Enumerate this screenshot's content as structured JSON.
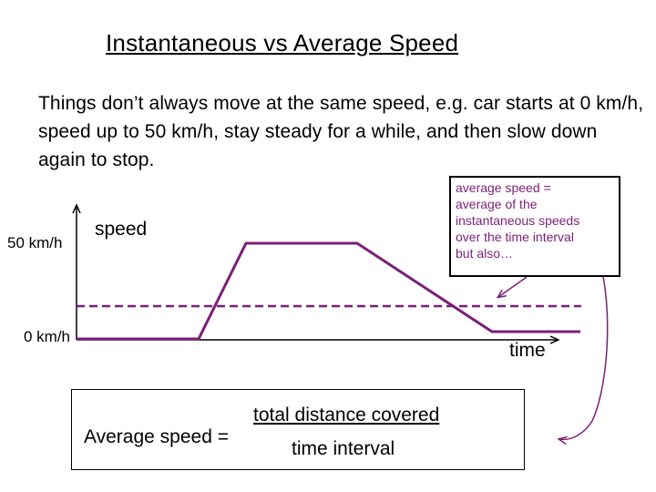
{
  "title": "Instantaneous vs Average Speed",
  "intro": "Things don’t always move at the same speed, e.g. car starts at 0 km/h, speed up to 50 km/h, stay steady for a while, and then slow down again to stop.",
  "graph": {
    "y_top_label": "50 km/h",
    "y_zero_label": "0 km/h",
    "y_axis_label": "speed",
    "x_axis_label": "time"
  },
  "note": {
    "lines": [
      "average speed =",
      "average of the",
      "instantaneous speeds",
      "over the time interval",
      "but also…"
    ]
  },
  "formula": {
    "lhs": "Average speed =",
    "numerator": "total distance covered",
    "denominator": "time interval"
  },
  "colors": {
    "curve": "#7a1f78",
    "average_line": "#7a1f78",
    "note_text": "#7a1f78",
    "arrows": "#7a1f78"
  }
}
